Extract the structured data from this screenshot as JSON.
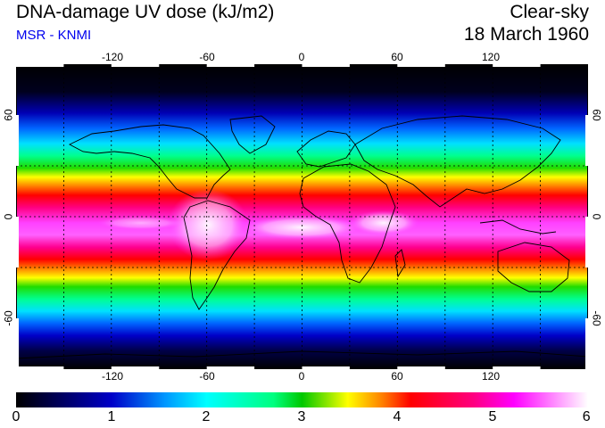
{
  "header": {
    "title": "DNA-damage UV dose (kJ/m2)",
    "subtitle": "MSR - KNMI",
    "sky_condition": "Clear-sky",
    "date": "18 March 1960"
  },
  "map": {
    "lon_ticks": [
      "-120",
      "-60",
      "0",
      "60",
      "120"
    ],
    "lat_ticks": [
      "60",
      "0",
      "-60"
    ],
    "extent": {
      "lon": [
        -180,
        180
      ],
      "lat": [
        -90,
        90
      ]
    }
  },
  "colorbar": {
    "labels": [
      "0",
      "1",
      "2",
      "3",
      "4",
      "5",
      "6"
    ],
    "range": [
      0,
      6
    ],
    "colors": [
      "#000000",
      "#0000c8",
      "#0096ff",
      "#00ffff",
      "#00c800",
      "#ffff00",
      "#ff8000",
      "#ff0000",
      "#ff0080",
      "#ff00ff",
      "#ffffff"
    ]
  }
}
